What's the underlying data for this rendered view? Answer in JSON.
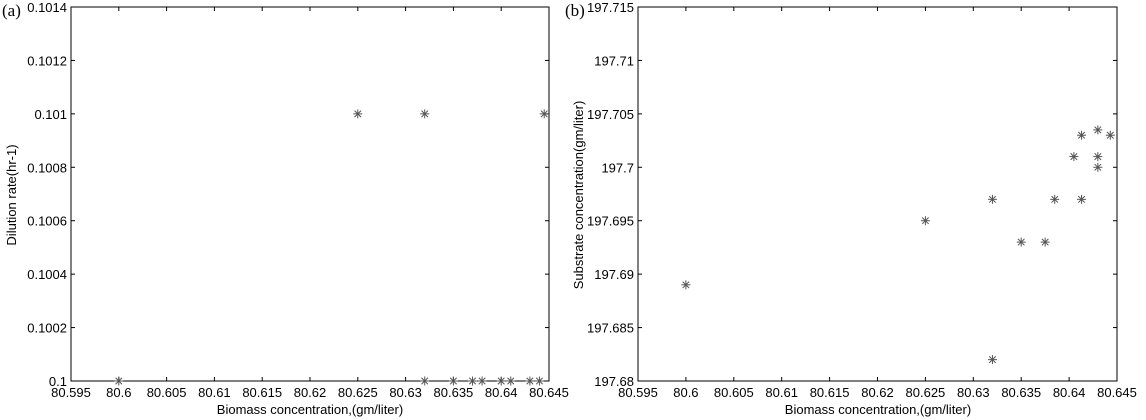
{
  "chart_data": [
    {
      "panel_label": "(a)",
      "type": "scatter",
      "xlabel": "Biomass concentration,(gm/liter)",
      "ylabel": "Dilution rate(hr-1)",
      "xlim": [
        80.595,
        80.645
      ],
      "ylim": [
        0.1,
        0.1014
      ],
      "xticks": [
        "80.595",
        "80.6",
        "80.605",
        "80.61",
        "80.615",
        "80.62",
        "80.625",
        "80.63",
        "80.635",
        "80.64",
        "80.645"
      ],
      "yticks": [
        "0.1",
        "0.1002",
        "0.1004",
        "0.1006",
        "0.1008",
        "0.101",
        "0.1012",
        "0.1014"
      ],
      "marker": "*",
      "marker_color": "#666666",
      "grid": false,
      "points": [
        {
          "x": 80.6,
          "y": 0.1
        },
        {
          "x": 80.625,
          "y": 0.101
        },
        {
          "x": 80.632,
          "y": 0.101
        },
        {
          "x": 80.6445,
          "y": 0.101
        },
        {
          "x": 80.632,
          "y": 0.1
        },
        {
          "x": 80.635,
          "y": 0.1
        },
        {
          "x": 80.637,
          "y": 0.1
        },
        {
          "x": 80.638,
          "y": 0.1
        },
        {
          "x": 80.64,
          "y": 0.1
        },
        {
          "x": 80.641,
          "y": 0.1
        },
        {
          "x": 80.643,
          "y": 0.1
        },
        {
          "x": 80.644,
          "y": 0.1
        }
      ]
    },
    {
      "panel_label": "(b)",
      "type": "scatter",
      "xlabel": "Biomass concentration,(gm/liter)",
      "ylabel": "Substrate concentration(gm/liter)",
      "xlim": [
        80.595,
        80.645
      ],
      "ylim": [
        197.68,
        197.715
      ],
      "xticks": [
        "80.595",
        "80.6",
        "80.605",
        "80.61",
        "80.615",
        "80.62",
        "80.625",
        "80.63",
        "80.635",
        "80.64",
        "80.645"
      ],
      "yticks": [
        "197.68",
        "197.685",
        "197.69",
        "197.695",
        "197.7",
        "197.705",
        "197.71",
        "197.715"
      ],
      "marker": "*",
      "marker_color": "#666666",
      "grid": false,
      "points": [
        {
          "x": 80.6,
          "y": 197.689
        },
        {
          "x": 80.625,
          "y": 197.695
        },
        {
          "x": 80.632,
          "y": 197.682
        },
        {
          "x": 80.632,
          "y": 197.697
        },
        {
          "x": 80.635,
          "y": 197.693
        },
        {
          "x": 80.6375,
          "y": 197.693
        },
        {
          "x": 80.6385,
          "y": 197.697
        },
        {
          "x": 80.6405,
          "y": 197.701
        },
        {
          "x": 80.6413,
          "y": 197.697
        },
        {
          "x": 80.6413,
          "y": 197.703
        },
        {
          "x": 80.643,
          "y": 197.7035
        },
        {
          "x": 80.643,
          "y": 197.701
        },
        {
          "x": 80.643,
          "y": 197.7
        },
        {
          "x": 80.6443,
          "y": 197.703
        }
      ]
    }
  ]
}
